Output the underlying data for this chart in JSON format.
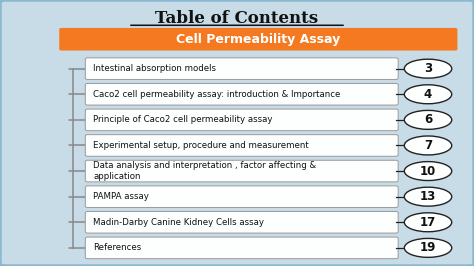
{
  "title": "Table of Contents",
  "header": "Cell Permeability Assay",
  "header_bg": "#F47920",
  "header_text_color": "#FFFFFF",
  "bg_color": "#C8DCE8",
  "outer_border_color": "#8BB8D0",
  "items": [
    {
      "text": "Intestinal absorption models",
      "page": "3"
    },
    {
      "text": "Caco2 cell permeability assay: introduction & Importance",
      "page": "4"
    },
    {
      "text": "Principle of Caco2 cell permeability assay",
      "page": "6"
    },
    {
      "text": "Experimental setup, procedure and measurement",
      "page": "7"
    },
    {
      "text": "Data analysis and interpretation , factor affecting &\napplication",
      "page": "10"
    },
    {
      "text": "PAMPA assay",
      "page": "13"
    },
    {
      "text": "Madin-Darby Canine Kidney Cells assay",
      "page": "17"
    },
    {
      "text": "References",
      "page": "19"
    }
  ],
  "box_facecolor": "#FDFEFE",
  "box_edgecolor": "#999999",
  "left_bar_color": "#888888",
  "ellipse_facecolor": "#FDFEFE",
  "ellipse_edgecolor": "#222222",
  "line_color": "#222222",
  "title_fontsize": 12,
  "header_fontsize": 9,
  "item_fontsize": 6.2,
  "page_fontsize": 8.5
}
